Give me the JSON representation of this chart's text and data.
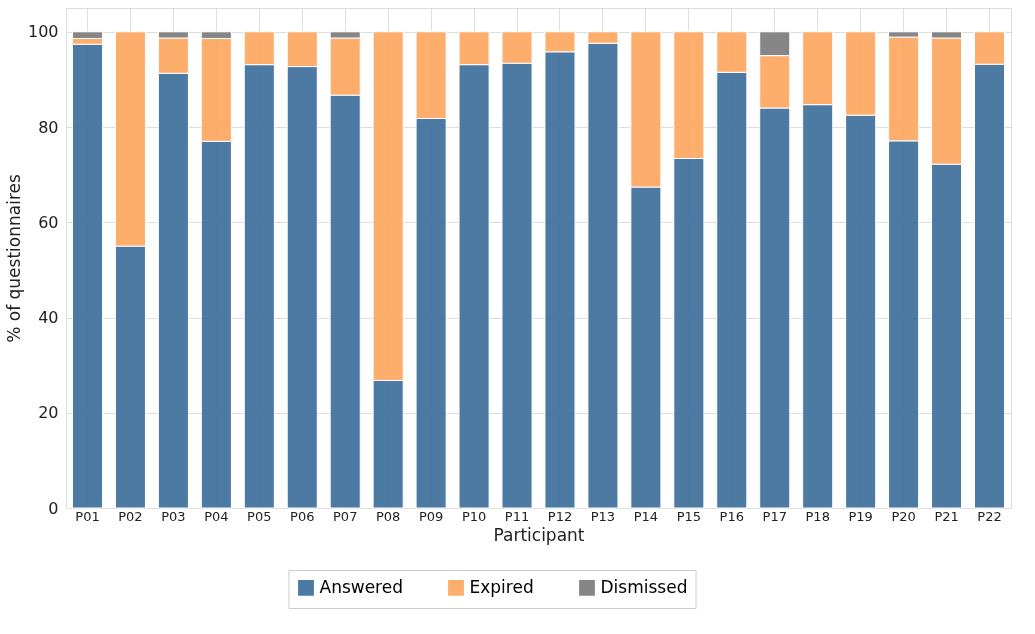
{
  "chart_data": {
    "type": "bar",
    "stacked": true,
    "xlabel": "Participant",
    "ylabel": "% of questionnaires",
    "categories": [
      "P01",
      "P02",
      "P03",
      "P04",
      "P05",
      "P06",
      "P07",
      "P08",
      "P09",
      "P10",
      "P11",
      "P12",
      "P13",
      "P14",
      "P15",
      "P16",
      "P17",
      "P18",
      "P19",
      "P20",
      "P21",
      "P22"
    ],
    "series": [
      {
        "name": "Answered",
        "color": "#44739f",
        "values": [
          97.4,
          55,
          91.3,
          77,
          93.1,
          92.7,
          86.7,
          26.8,
          81.8,
          93.1,
          93.4,
          95.8,
          97.6,
          67.4,
          73.4,
          91.5,
          84.0,
          84.7,
          82.5,
          77.1,
          72.2,
          93.2
        ]
      },
      {
        "name": "Expired",
        "color": "#fdaa66",
        "values": [
          1.2,
          45,
          7.4,
          21.6,
          6.9,
          7.3,
          12,
          73.2,
          18.2,
          6.9,
          6.6,
          4.2,
          2.4,
          32.6,
          26.6,
          8.5,
          11.0,
          15.3,
          17.5,
          21.8,
          26.5,
          6.8
        ]
      },
      {
        "name": "Dismissed",
        "color": "#808080",
        "values": [
          1.4,
          null,
          1.3,
          1.4,
          null,
          null,
          1.3,
          null,
          null,
          null,
          null,
          null,
          null,
          null,
          null,
          null,
          5.0,
          null,
          null,
          1.1,
          1.3,
          null
        ]
      }
    ],
    "ylim": [
      0,
      105
    ],
    "yticks": [
      0,
      20,
      40,
      60,
      80,
      100
    ],
    "grid": true,
    "legend": "bottom"
  }
}
